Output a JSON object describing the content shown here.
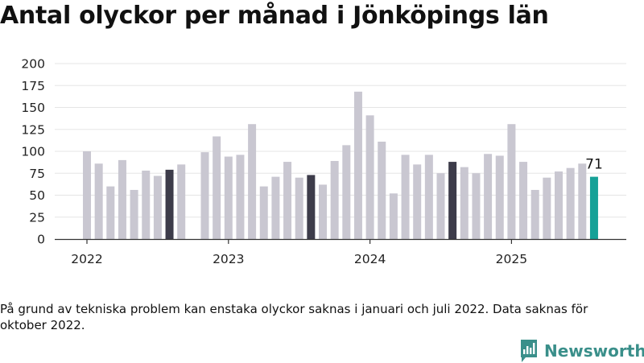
{
  "header": {
    "title": "Antal olyckor per månad i Jönköpings län"
  },
  "footer": {
    "note": "På grund av tekniska problem kan enstaka olyckor saknas i januari och juli 2022. Data saknas för oktober 2022.",
    "brand": "Newsworthy"
  },
  "colors": {
    "bar": "#c9c7d1",
    "highlight_bar": "#3d3c4a",
    "latest_bar": "#16a197",
    "grid": "#e5e5e5",
    "axis": "#333333",
    "brand": "#3a8f8a"
  },
  "chart_data": {
    "type": "bar",
    "title": "Antal olyckor per månad i Jönköpings län",
    "xlabel": "",
    "ylabel": "",
    "ylim": [
      0,
      200
    ],
    "y_ticks": [
      "0",
      "25",
      "50",
      "75",
      "100",
      "125",
      "150",
      "175",
      "200"
    ],
    "x_tick_labels": [
      {
        "label": "2022",
        "period": "2022-01"
      },
      {
        "label": "2023",
        "period": "2023-01"
      },
      {
        "label": "2024",
        "period": "2024-01"
      },
      {
        "label": "2025",
        "period": "2025-01"
      }
    ],
    "grid": true,
    "highlight_months": [
      "2022-08",
      "2023-08",
      "2024-08"
    ],
    "latest_label": "71",
    "series": [
      {
        "values": [
          {
            "period": "2022-01",
            "value": 100
          },
          {
            "period": "2022-02",
            "value": 86
          },
          {
            "period": "2022-03",
            "value": 60
          },
          {
            "period": "2022-04",
            "value": 90
          },
          {
            "period": "2022-05",
            "value": 56
          },
          {
            "period": "2022-06",
            "value": 78
          },
          {
            "period": "2022-07",
            "value": 72
          },
          {
            "period": "2022-08",
            "value": 79
          },
          {
            "period": "2022-09",
            "value": 85
          },
          {
            "period": "2022-10",
            "value": null
          },
          {
            "period": "2022-11",
            "value": 99
          },
          {
            "period": "2022-12",
            "value": 117
          },
          {
            "period": "2023-01",
            "value": 94
          },
          {
            "period": "2023-02",
            "value": 96
          },
          {
            "period": "2023-03",
            "value": 131
          },
          {
            "period": "2023-04",
            "value": 60
          },
          {
            "period": "2023-05",
            "value": 71
          },
          {
            "period": "2023-06",
            "value": 88
          },
          {
            "period": "2023-07",
            "value": 70
          },
          {
            "period": "2023-08",
            "value": 73
          },
          {
            "period": "2023-09",
            "value": 62
          },
          {
            "period": "2023-10",
            "value": 89
          },
          {
            "period": "2023-11",
            "value": 107
          },
          {
            "period": "2023-12",
            "value": 168
          },
          {
            "period": "2024-01",
            "value": 141
          },
          {
            "period": "2024-02",
            "value": 111
          },
          {
            "period": "2024-03",
            "value": 52
          },
          {
            "period": "2024-04",
            "value": 96
          },
          {
            "period": "2024-05",
            "value": 85
          },
          {
            "period": "2024-06",
            "value": 96
          },
          {
            "period": "2024-07",
            "value": 75
          },
          {
            "period": "2024-08",
            "value": 88
          },
          {
            "period": "2024-09",
            "value": 82
          },
          {
            "period": "2024-10",
            "value": 75
          },
          {
            "period": "2024-11",
            "value": 97
          },
          {
            "period": "2024-12",
            "value": 95
          },
          {
            "period": "2025-01",
            "value": 131
          },
          {
            "period": "2025-02",
            "value": 88
          },
          {
            "period": "2025-03",
            "value": 56
          },
          {
            "period": "2025-04",
            "value": 70
          },
          {
            "period": "2025-05",
            "value": 77
          },
          {
            "period": "2025-06",
            "value": 81
          },
          {
            "period": "2025-07",
            "value": 86
          },
          {
            "period": "2025-08",
            "value": 71
          }
        ]
      }
    ]
  }
}
